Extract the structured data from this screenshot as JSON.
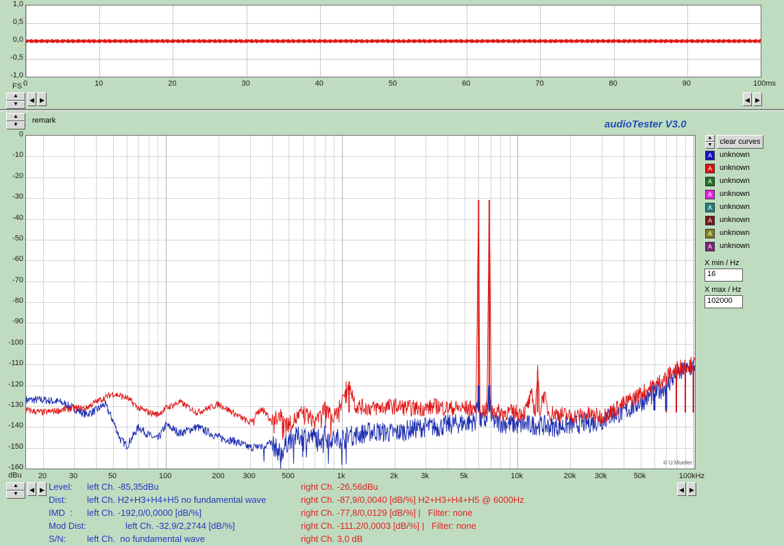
{
  "colors": {
    "left": "#1f2fb0",
    "right": "#e01818",
    "plot_bg": "#ffffff",
    "app_bg": "#c0dcc0"
  },
  "chart_data": [
    {
      "type": "line",
      "title": "",
      "xlabel_prefix": "FS",
      "x_unit": "ms",
      "xlim": [
        0,
        100
      ],
      "ylim": [
        -1.0,
        1.0
      ],
      "x_ticks": [
        "0",
        "10",
        "20",
        "30",
        "40",
        "50",
        "60",
        "70",
        "80",
        "90",
        "100ms"
      ],
      "y_ticks": [
        "1,0",
        "0,5",
        "0,0",
        "-0,5",
        "-1,0"
      ],
      "series": [
        {
          "color": "#e01818",
          "amplitude": 0.06,
          "cycles_per_100ms": 140
        }
      ],
      "grid": true
    },
    {
      "type": "line",
      "title": "audioTester  V3.0",
      "remark": "remark",
      "y_unit": "dBu",
      "x_scale": "log",
      "xlim": [
        16,
        102000
      ],
      "ylim": [
        -160,
        0
      ],
      "x_ticks": [
        "20",
        "30",
        "50",
        "100",
        "200",
        "300",
        "500",
        "1k",
        "2k",
        "3k",
        "5k",
        "10k",
        "20k",
        "30k",
        "50k",
        "100kHz"
      ],
      "y_ticks": [
        "0",
        "-10",
        "-20",
        "-30",
        "-40",
        "-50",
        "-60",
        "-70",
        "-80",
        "-90",
        "-100",
        "-110",
        "-120",
        "-130",
        "-140",
        "-150",
        "-160"
      ],
      "grid": true,
      "series": [
        {
          "channel": "right",
          "color": "#e01818",
          "points": [
            [
              16,
              -132
            ],
            [
              20,
              -133
            ],
            [
              25,
              -132
            ],
            [
              30,
              -131
            ],
            [
              35,
              -131
            ],
            [
              40,
              -128
            ],
            [
              50,
              -124
            ],
            [
              60,
              -126
            ],
            [
              70,
              -131
            ],
            [
              80,
              -133
            ],
            [
              90,
              -134
            ],
            [
              100,
              -131
            ],
            [
              120,
              -128
            ],
            [
              150,
              -133
            ],
            [
              200,
              -129
            ],
            [
              250,
              -134
            ],
            [
              300,
              -138
            ],
            [
              350,
              -131
            ],
            [
              400,
              -137
            ],
            [
              450,
              -135
            ],
            [
              500,
              -139
            ],
            [
              600,
              -133
            ],
            [
              700,
              -137
            ],
            [
              800,
              -131
            ],
            [
              900,
              -136
            ],
            [
              1000,
              -128
            ],
            [
              1100,
              -118
            ],
            [
              1200,
              -130
            ],
            [
              1500,
              -131
            ],
            [
              2000,
              -130
            ],
            [
              2500,
              -131
            ],
            [
              3000,
              -131
            ],
            [
              3500,
              -130
            ],
            [
              4000,
              -131
            ],
            [
              4500,
              -131
            ],
            [
              5000,
              -131
            ],
            [
              5800,
              -131
            ],
            [
              6000,
              -31
            ],
            [
              6100,
              -132
            ],
            [
              6700,
              -132
            ],
            [
              6900,
              -31
            ],
            [
              7100,
              -132
            ],
            [
              8000,
              -133
            ],
            [
              9000,
              -133
            ],
            [
              10000,
              -133
            ],
            [
              11000,
              -133
            ],
            [
              12000,
              -125
            ],
            [
              12600,
              -133
            ],
            [
              13000,
              -113
            ],
            [
              13400,
              -133
            ],
            [
              14000,
              -124
            ],
            [
              15000,
              -133
            ],
            [
              18000,
              -134
            ],
            [
              20000,
              -135
            ],
            [
              25000,
              -134
            ],
            [
              30000,
              -135
            ],
            [
              35000,
              -132
            ],
            [
              40000,
              -129
            ],
            [
              50000,
              -124
            ],
            [
              60000,
              -120
            ],
            [
              70000,
              -116
            ],
            [
              80000,
              -112
            ],
            [
              90000,
              -110
            ],
            [
              100000,
              -110
            ]
          ],
          "noise": 4
        },
        {
          "channel": "left",
          "color": "#1f2fb0",
          "points": [
            [
              16,
              -127
            ],
            [
              20,
              -127
            ],
            [
              25,
              -128
            ],
            [
              30,
              -131
            ],
            [
              35,
              -134
            ],
            [
              40,
              -132
            ],
            [
              45,
              -129
            ],
            [
              50,
              -137
            ],
            [
              55,
              -146
            ],
            [
              60,
              -149
            ],
            [
              70,
              -140
            ],
            [
              80,
              -144
            ],
            [
              90,
              -146
            ],
            [
              100,
              -139
            ],
            [
              120,
              -143
            ],
            [
              150,
              -140
            ],
            [
              200,
              -145
            ],
            [
              250,
              -147
            ],
            [
              300,
              -150
            ],
            [
              400,
              -148
            ],
            [
              450,
              -153
            ],
            [
              500,
              -146
            ],
            [
              600,
              -144
            ],
            [
              700,
              -145
            ],
            [
              800,
              -144
            ],
            [
              900,
              -146
            ],
            [
              1000,
              -145
            ],
            [
              1200,
              -144
            ],
            [
              1500,
              -142
            ],
            [
              2000,
              -143
            ],
            [
              2500,
              -141
            ],
            [
              3000,
              -140
            ],
            [
              3500,
              -140
            ],
            [
              4000,
              -139
            ],
            [
              5000,
              -138
            ],
            [
              5800,
              -137
            ],
            [
              6000,
              -120
            ],
            [
              6100,
              -137
            ],
            [
              6700,
              -137
            ],
            [
              6900,
              -120
            ],
            [
              7100,
              -137
            ],
            [
              8000,
              -138
            ],
            [
              10000,
              -139
            ],
            [
              13000,
              -139
            ],
            [
              16000,
              -140
            ],
            [
              20000,
              -139
            ],
            [
              25000,
              -138
            ],
            [
              30000,
              -137
            ],
            [
              35000,
              -134
            ],
            [
              40000,
              -133
            ],
            [
              50000,
              -128
            ],
            [
              60000,
              -124
            ],
            [
              70000,
              -120
            ],
            [
              80000,
              -115
            ],
            [
              90000,
              -113
            ],
            [
              100000,
              -111
            ]
          ],
          "noise": 5
        }
      ]
    }
  ],
  "legend": {
    "clear_label": "clear curves",
    "items": [
      {
        "label": "unknown",
        "color": "#1010c8"
      },
      {
        "label": "unknown",
        "color": "#e01010"
      },
      {
        "label": "unknown",
        "color": "#207020"
      },
      {
        "label": "unknown",
        "color": "#e020e0"
      },
      {
        "label": "unknown",
        "color": "#208080"
      },
      {
        "label": "unknown",
        "color": "#701818"
      },
      {
        "label": "unknown",
        "color": "#808020"
      },
      {
        "label": "unknown",
        "color": "#802080"
      }
    ]
  },
  "xrange": {
    "min_label": "X min / Hz",
    "min_value": "16",
    "max_label": "X max / Hz",
    "max_value": "102000"
  },
  "watermark": "© U.Mueller",
  "status": {
    "level_label": "Level:",
    "level_left": "left Ch. -85,35dBu",
    "level_right": "right Ch. -26,56dBu",
    "dist_label": "Dist:",
    "dist_left": "left Ch. H2+H3+H4+H5 no fundamental wave",
    "dist_right": "right Ch. -87,9/0,0040 [dB/%] H2+H3+H4+H5 @ 6000Hz",
    "imd_label": "IMD  :",
    "imd_left": "left Ch. -192,0/0,0000 [dB/%]",
    "imd_right": "right Ch. -77,8/0,0129 [dB/%] |   Filter: none",
    "mod_label": "Mod Dist:",
    "mod_left": "left Ch. -32,9/2,2744 [dB/%]",
    "mod_right": "right Ch. -111,2/0,0003 [dB/%] |   Filter: none",
    "sn_label": "S/N:",
    "sn_left": "left Ch.  no fundamental wave",
    "sn_right": "right Ch. 3,0 dB"
  }
}
